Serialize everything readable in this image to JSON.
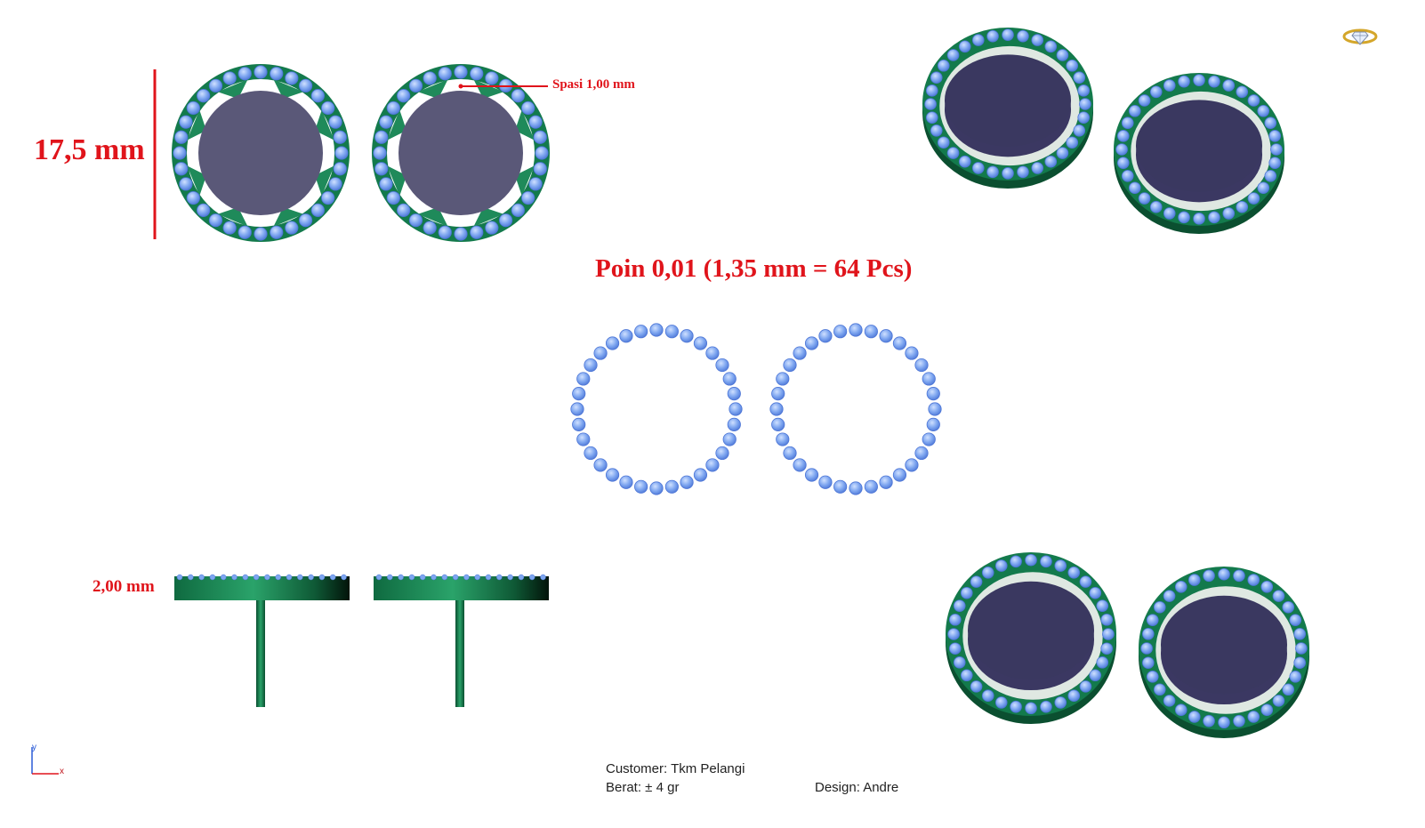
{
  "dimensions": {
    "height_label": "17,5 mm",
    "gap_label": "Spasi  1,00 mm",
    "thickness_label": "2,00 mm"
  },
  "stone_spec": "Poin  0,01 (1,35 mm = 64 Pcs)",
  "info": {
    "customer": "Customer: Tkm Pelangi",
    "weight": "Berat: ± 4 gr",
    "design": "Design: Andre"
  },
  "axis": {
    "y": "y",
    "x": "x"
  },
  "stones_per_ring": 32,
  "colors": {
    "metal": "#137a4c",
    "metal_dark": "#0b4f30",
    "stone": "#7ea6f0",
    "stone_edge": "#4d76d6",
    "center_stone": "#5a5878",
    "center_stone_dark": "#3b3862",
    "dimension": "#e0141b"
  },
  "icons": {
    "corner": "diamond-ring-icon"
  }
}
